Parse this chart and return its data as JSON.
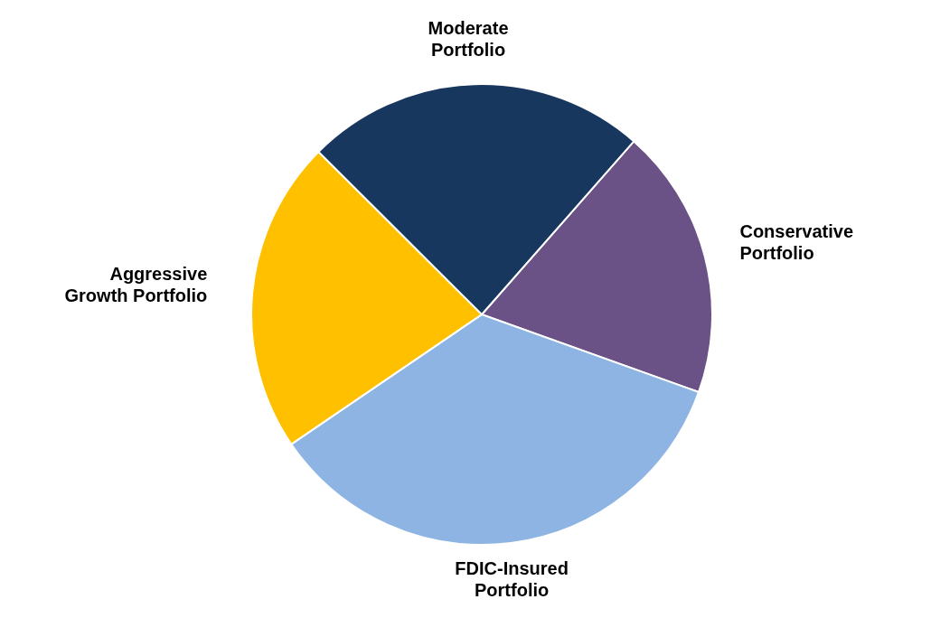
{
  "chart_data": {
    "type": "pie",
    "categories": [
      "Conservative Portfolio",
      "FDIC-Insured Portfolio",
      "Aggressive Growth Portfolio",
      "Moderate Portfolio"
    ],
    "values": [
      19,
      35,
      22,
      24
    ],
    "colors": [
      "#6a5186",
      "#8eb4e3",
      "#ffc000",
      "#17375e"
    ],
    "legend": false
  }
}
